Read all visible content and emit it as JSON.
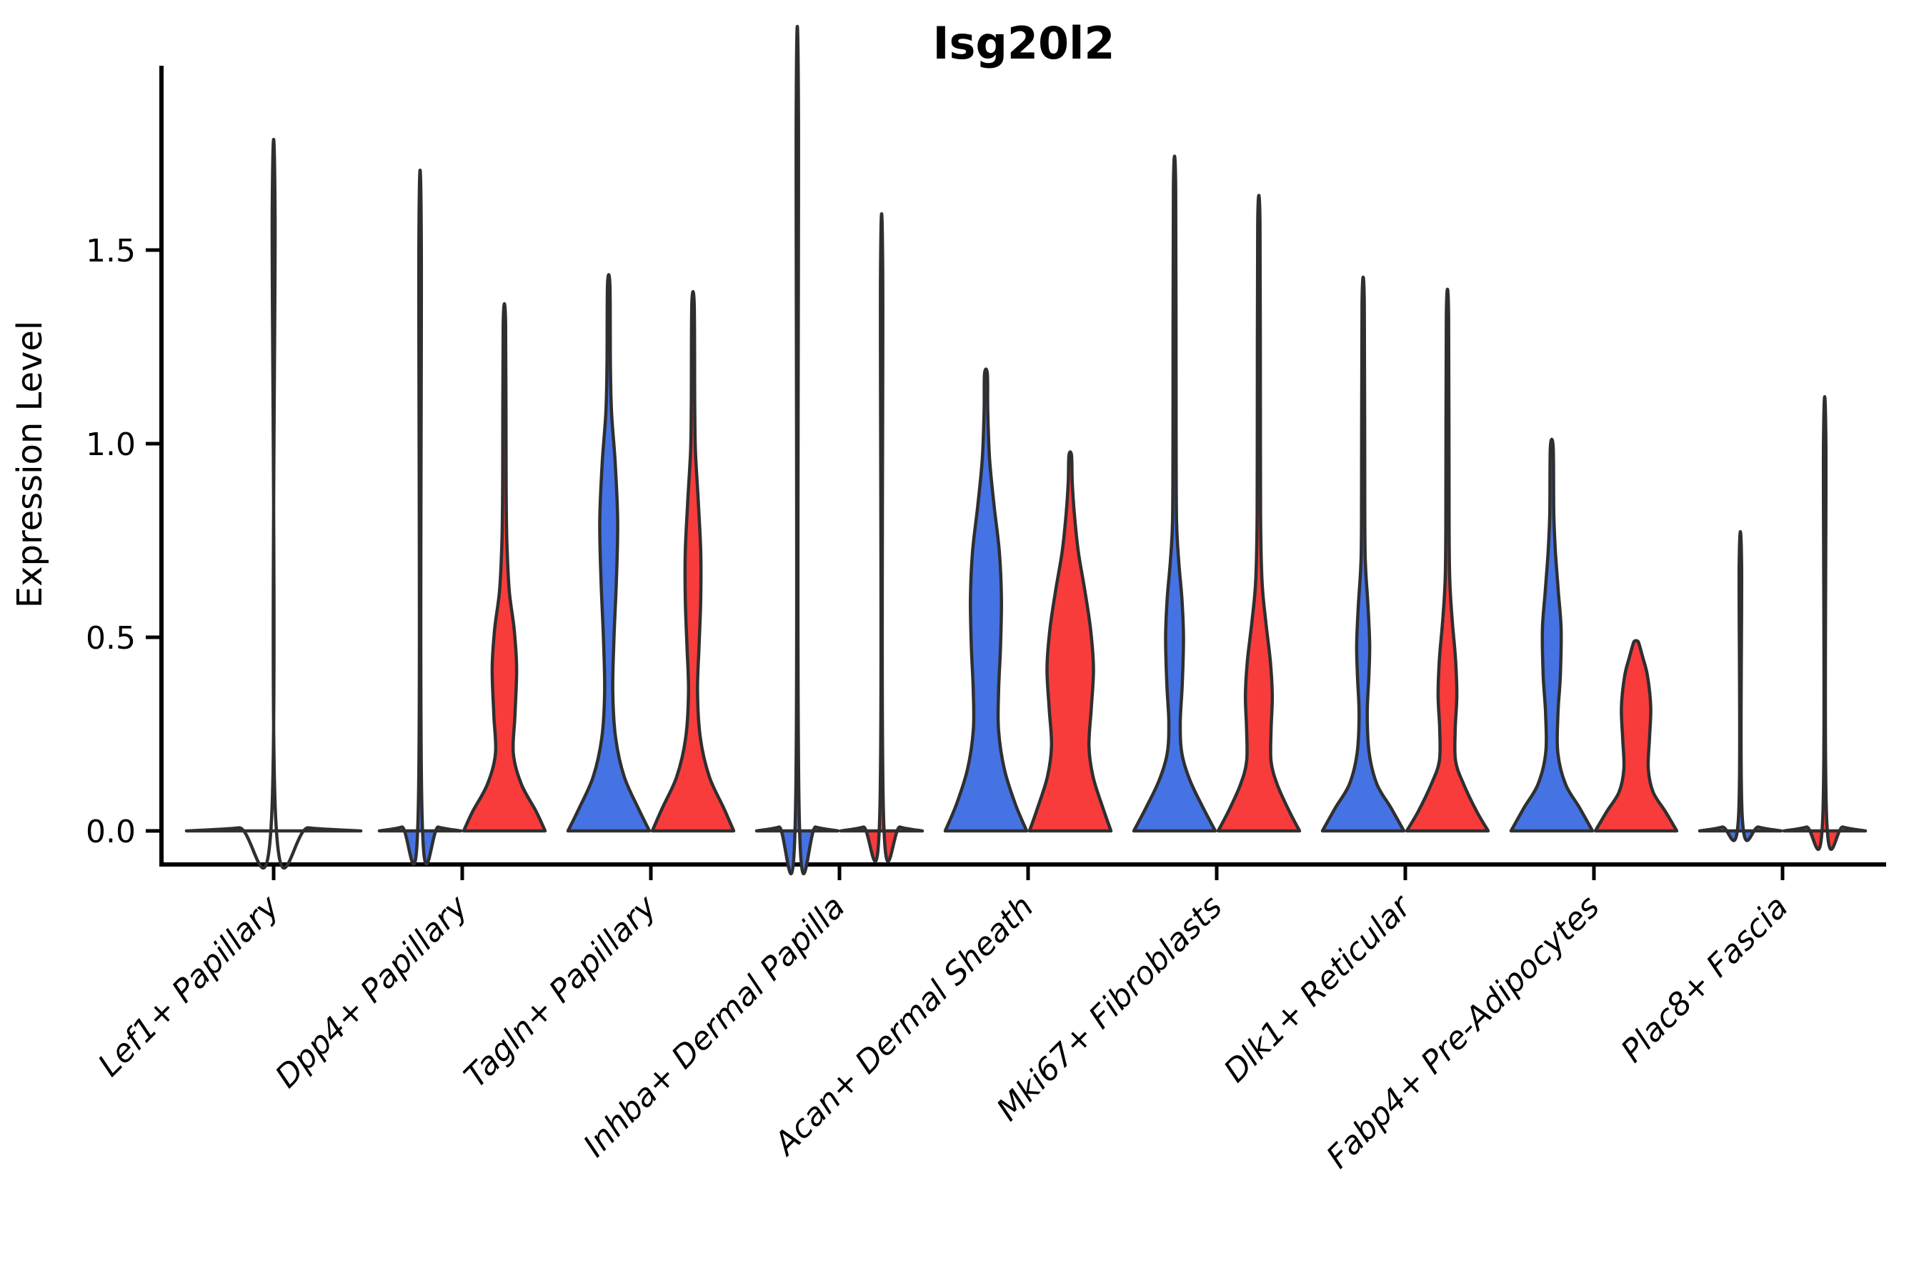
{
  "title": "Isg20l2",
  "ylabel": "Expression Level",
  "colors": {
    "blue": "#4673E3",
    "red": "#F83C3C",
    "none": "none",
    "outline": "#2F2F2F",
    "axis": "#000000"
  },
  "chart_data": {
    "type": "violin",
    "title": "Isg20l2",
    "xlabel": "",
    "ylabel": "Expression Level",
    "ylim": [
      -0.09,
      1.95
    ],
    "yticks": [
      0.0,
      0.5,
      1.0,
      1.5
    ],
    "ytick_labels": [
      "0.0",
      "0.5",
      "1.0",
      "1.5"
    ],
    "grid": false,
    "legend": "none",
    "categories": [
      "Lef1+ Papillary",
      "Dpp4+ Papillary",
      "Tagln+ Papillary",
      "Inhba+ Dermal Papilla",
      "Acan+ Dermal Sheath",
      "Mki67+ Fibroblasts",
      "Dlk1+ Reticular",
      "Fabp4+ Pre-Adipocytes",
      "Plac8+ Fascia"
    ],
    "groups": [
      {
        "category": "Lef1+ Papillary",
        "violins": [
          {
            "position": "center",
            "color": "none",
            "max": 1.59,
            "profile": [
              [
                0,
                1
              ],
              [
                0.008,
                0.4
              ],
              [
                0.025,
                0.025
              ],
              [
                1.59,
                0.016
              ]
            ]
          }
        ]
      },
      {
        "category": "Dpp4+ Papillary",
        "violins": [
          {
            "position": "left",
            "color": "blue",
            "max": 1.52,
            "profile": [
              [
                0,
                1
              ],
              [
                0.01,
                0.45
              ],
              [
                0.03,
                0.05
              ],
              [
                1.52,
                0.03
              ]
            ]
          },
          {
            "position": "right",
            "color": "red",
            "max": 1.31,
            "profile": [
              [
                0,
                1
              ],
              [
                0.05,
                0.78
              ],
              [
                0.12,
                0.42
              ],
              [
                0.2,
                0.22
              ],
              [
                0.3,
                0.26
              ],
              [
                0.42,
                0.3
              ],
              [
                0.52,
                0.24
              ],
              [
                0.62,
                0.12
              ],
              [
                0.75,
                0.06
              ],
              [
                0.9,
                0.042
              ],
              [
                1.31,
                0.03
              ]
            ]
          }
        ]
      },
      {
        "category": "Tagln+ Papillary",
        "violins": [
          {
            "position": "left",
            "color": "blue",
            "max": 1.41,
            "profile": [
              [
                0,
                1
              ],
              [
                0.06,
                0.72
              ],
              [
                0.14,
                0.38
              ],
              [
                0.24,
                0.17
              ],
              [
                0.36,
                0.1
              ],
              [
                0.5,
                0.13
              ],
              [
                0.65,
                0.19
              ],
              [
                0.8,
                0.22
              ],
              [
                0.95,
                0.16
              ],
              [
                1.08,
                0.07
              ],
              [
                1.2,
                0.042
              ],
              [
                1.41,
                0.03
              ]
            ]
          },
          {
            "position": "right",
            "color": "red",
            "max": 1.36,
            "profile": [
              [
                0,
                1
              ],
              [
                0.06,
                0.75
              ],
              [
                0.14,
                0.4
              ],
              [
                0.24,
                0.18
              ],
              [
                0.36,
                0.11
              ],
              [
                0.48,
                0.15
              ],
              [
                0.6,
                0.19
              ],
              [
                0.72,
                0.19
              ],
              [
                0.85,
                0.13
              ],
              [
                0.98,
                0.06
              ],
              [
                1.1,
                0.042
              ],
              [
                1.36,
                0.03
              ]
            ]
          }
        ]
      },
      {
        "category": "Inhba+ Dermal Papilla",
        "violins": [
          {
            "position": "left",
            "color": "blue",
            "max": 1.85,
            "profile": [
              [
                0,
                1
              ],
              [
                0.01,
                0.45
              ],
              [
                0.03,
                0.05
              ],
              [
                1.85,
                0.028
              ]
            ]
          },
          {
            "position": "right",
            "color": "red",
            "max": 1.42,
            "profile": [
              [
                0,
                1
              ],
              [
                0.01,
                0.45
              ],
              [
                0.03,
                0.05
              ],
              [
                1.42,
                0.028
              ]
            ]
          }
        ]
      },
      {
        "category": "Acan+ Dermal Sheath",
        "violins": [
          {
            "position": "left",
            "color": "blue",
            "max": 1.18,
            "profile": [
              [
                0,
                1
              ],
              [
                0.07,
                0.72
              ],
              [
                0.16,
                0.45
              ],
              [
                0.26,
                0.31
              ],
              [
                0.36,
                0.31
              ],
              [
                0.48,
                0.36
              ],
              [
                0.6,
                0.38
              ],
              [
                0.72,
                0.33
              ],
              [
                0.84,
                0.2
              ],
              [
                0.96,
                0.09
              ],
              [
                1.08,
                0.045
              ],
              [
                1.18,
                0.035
              ]
            ]
          },
          {
            "position": "right",
            "color": "red",
            "max": 0.97,
            "profile": [
              [
                0,
                1
              ],
              [
                0.06,
                0.8
              ],
              [
                0.14,
                0.56
              ],
              [
                0.22,
                0.46
              ],
              [
                0.32,
                0.52
              ],
              [
                0.42,
                0.57
              ],
              [
                0.52,
                0.5
              ],
              [
                0.62,
                0.36
              ],
              [
                0.72,
                0.2
              ],
              [
                0.82,
                0.1
              ],
              [
                0.9,
                0.05
              ],
              [
                0.97,
                0.032
              ]
            ]
          }
        ]
      },
      {
        "category": "Mki67+ Fibroblasts",
        "violins": [
          {
            "position": "left",
            "color": "blue",
            "max": 1.66,
            "profile": [
              [
                0,
                1
              ],
              [
                0.06,
                0.7
              ],
              [
                0.13,
                0.38
              ],
              [
                0.2,
                0.18
              ],
              [
                0.28,
                0.14
              ],
              [
                0.38,
                0.19
              ],
              [
                0.5,
                0.22
              ],
              [
                0.6,
                0.18
              ],
              [
                0.7,
                0.1
              ],
              [
                0.8,
                0.05
              ],
              [
                1.0,
                0.038
              ],
              [
                1.66,
                0.028
              ]
            ]
          },
          {
            "position": "right",
            "color": "red",
            "max": 1.57,
            "profile": [
              [
                0,
                1
              ],
              [
                0.05,
                0.75
              ],
              [
                0.12,
                0.45
              ],
              [
                0.18,
                0.3
              ],
              [
                0.26,
                0.3
              ],
              [
                0.35,
                0.33
              ],
              [
                0.44,
                0.28
              ],
              [
                0.54,
                0.17
              ],
              [
                0.64,
                0.08
              ],
              [
                0.78,
                0.045
              ],
              [
                1.0,
                0.038
              ],
              [
                1.57,
                0.028
              ]
            ]
          }
        ]
      },
      {
        "category": "Dlk1+ Reticular",
        "violins": [
          {
            "position": "left",
            "color": "blue",
            "max": 1.36,
            "profile": [
              [
                0,
                1
              ],
              [
                0.06,
                0.68
              ],
              [
                0.12,
                0.34
              ],
              [
                0.2,
                0.15
              ],
              [
                0.3,
                0.1
              ],
              [
                0.4,
                0.14
              ],
              [
                0.48,
                0.16
              ],
              [
                0.58,
                0.12
              ],
              [
                0.68,
                0.06
              ],
              [
                0.8,
                0.04
              ],
              [
                1.36,
                0.028
              ]
            ]
          },
          {
            "position": "right",
            "color": "red",
            "max": 1.33,
            "profile": [
              [
                0,
                1
              ],
              [
                0.05,
                0.72
              ],
              [
                0.12,
                0.4
              ],
              [
                0.18,
                0.2
              ],
              [
                0.26,
                0.19
              ],
              [
                0.35,
                0.23
              ],
              [
                0.44,
                0.2
              ],
              [
                0.54,
                0.12
              ],
              [
                0.64,
                0.06
              ],
              [
                0.78,
                0.04
              ],
              [
                1.33,
                0.028
              ]
            ]
          }
        ]
      },
      {
        "category": "Fabp4+ Pre-Adipocytes",
        "violins": [
          {
            "position": "left",
            "color": "blue",
            "max": 0.99,
            "profile": [
              [
                0,
                1
              ],
              [
                0.06,
                0.68
              ],
              [
                0.12,
                0.34
              ],
              [
                0.2,
                0.15
              ],
              [
                0.3,
                0.15
              ],
              [
                0.4,
                0.21
              ],
              [
                0.52,
                0.23
              ],
              [
                0.62,
                0.16
              ],
              [
                0.72,
                0.09
              ],
              [
                0.82,
                0.05
              ],
              [
                0.99,
                0.035
              ]
            ]
          },
          {
            "position": "right",
            "color": "red",
            "max": 0.49,
            "profile": [
              [
                0,
                1
              ],
              [
                0.05,
                0.72
              ],
              [
                0.1,
                0.42
              ],
              [
                0.16,
                0.3
              ],
              [
                0.24,
                0.33
              ],
              [
                0.32,
                0.36
              ],
              [
                0.4,
                0.28
              ],
              [
                0.45,
                0.16
              ],
              [
                0.48,
                0.08
              ],
              [
                0.49,
                0.04
              ]
            ]
          }
        ]
      },
      {
        "category": "Plac8+ Fascia",
        "violins": [
          {
            "position": "left",
            "color": "blue",
            "max": 0.69,
            "profile": [
              [
                0,
                1
              ],
              [
                0.01,
                0.45
              ],
              [
                0.03,
                0.05
              ],
              [
                0.69,
                0.03
              ]
            ]
          },
          {
            "position": "right",
            "color": "red",
            "max": 1.0,
            "profile": [
              [
                0,
                1
              ],
              [
                0.01,
                0.45
              ],
              [
                0.03,
                0.05
              ],
              [
                1.0,
                0.03
              ]
            ]
          }
        ]
      }
    ]
  }
}
